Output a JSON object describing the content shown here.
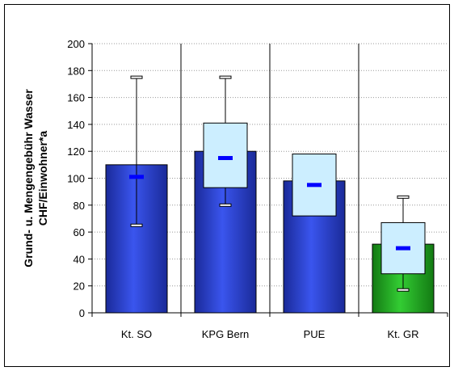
{
  "chart_data": {
    "type": "bar",
    "categories": [
      "Kt. SO",
      "KPG Bern",
      "PUE",
      "Kt. GR"
    ],
    "ylabel": [
      "Grund- u. Mengengebühr  Wasser",
      "CHF/Einwohner*a"
    ],
    "ylim": [
      0,
      200
    ],
    "yticks": [
      0,
      20,
      40,
      60,
      80,
      100,
      120,
      140,
      160,
      180,
      200
    ],
    "grid": true,
    "bars": [
      {
        "category": "Kt. SO",
        "value": 110,
        "color": "#2233cc",
        "box_low": null,
        "box_high": null,
        "mean": 101,
        "whisker_low": 65,
        "whisker_high": 175
      },
      {
        "category": "KPG Bern",
        "value": 120,
        "color": "#2233cc",
        "box_low": 93,
        "box_high": 141,
        "mean": 115,
        "whisker_low": 80,
        "whisker_high": 175
      },
      {
        "category": "PUE",
        "value": 98,
        "color": "#2233cc",
        "box_low": 72,
        "box_high": 118,
        "mean": 95,
        "whisker_low": null,
        "whisker_high": null
      },
      {
        "category": "Kt. GR",
        "value": 51,
        "color": "#22aa22",
        "box_low": 29,
        "box_high": 67,
        "mean": 48,
        "whisker_low": 17,
        "whisker_high": 86
      }
    ],
    "colors": {
      "box_fill": "#cceeff",
      "mean_marker": "#0000ff",
      "grid": "#999999"
    }
  }
}
